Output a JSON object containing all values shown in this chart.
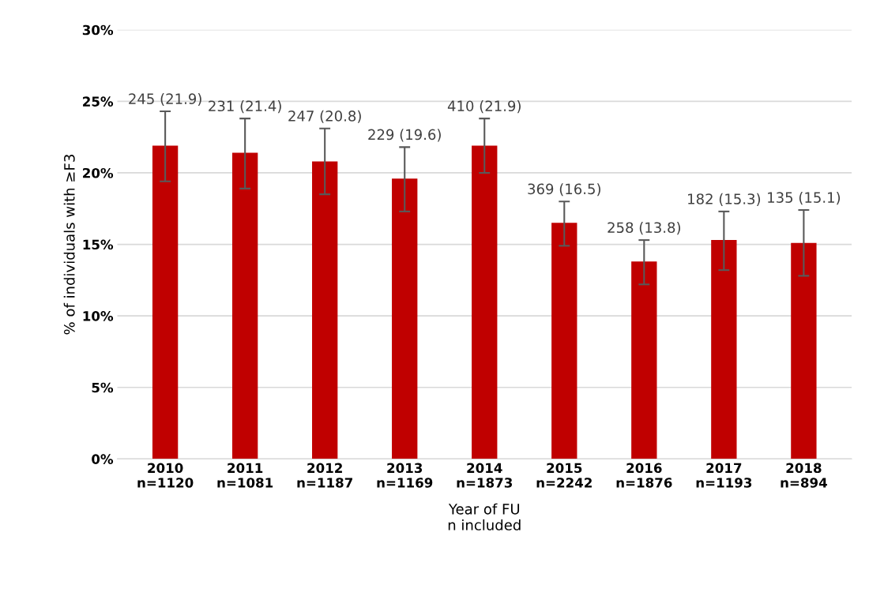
{
  "chart_data": {
    "type": "bar",
    "categories": [
      "2010\nn=1120",
      "2011\nn=1081",
      "2012\nn=1187",
      "2013\nn=1169",
      "2014\nn=1873",
      "2015\nn=2242",
      "2016\nn=1876",
      "2017\nn=1193",
      "2018\nn=894"
    ],
    "values": [
      21.9,
      21.4,
      20.8,
      19.6,
      21.9,
      16.5,
      13.8,
      15.3,
      15.1
    ],
    "errors": [
      [
        19.4,
        24.3
      ],
      [
        18.9,
        23.8
      ],
      [
        18.5,
        23.1
      ],
      [
        17.3,
        21.8
      ],
      [
        20.0,
        23.8
      ],
      [
        14.9,
        18.0
      ],
      [
        12.2,
        15.3
      ],
      [
        13.2,
        17.3
      ],
      [
        12.8,
        17.4
      ]
    ],
    "value_labels": [
      "245 (21.9)",
      "231 (21.4)",
      "247 (20.8)",
      "229 (19.6)",
      "410 (21.9)",
      "369 (16.5)",
      "258 (13.8)",
      "182 (15.3)",
      "135 (15.1)"
    ],
    "color": "#c00000",
    "xlabel": "Year of FU\nn included",
    "ylabel": "% of individuals with ≥F3",
    "ylim": [
      0,
      30
    ],
    "yticks": [
      {
        "value": 0,
        "label": "0%"
      },
      {
        "value": 5,
        "label": "5%"
      },
      {
        "value": 10,
        "label": "10%"
      },
      {
        "value": 15,
        "label": "15%"
      },
      {
        "value": 20,
        "label": "20%"
      },
      {
        "value": 25,
        "label": "25%"
      },
      {
        "value": 30,
        "label": "30%"
      }
    ],
    "grid": "y",
    "legend": false
  }
}
